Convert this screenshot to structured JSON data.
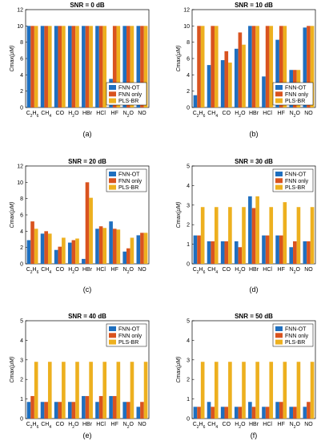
{
  "colors": {
    "FNN-OT": "#1f6fbf",
    "FNN only": "#d9531f",
    "PLS-BR": "#edb01f"
  },
  "chart_data": [
    {
      "type": "bar",
      "title": "SNR = 0 dB",
      "caption": "(a)",
      "ylabel": "Cmax(μM)",
      "ylim": [
        0,
        12
      ],
      "yticks": [
        0,
        2,
        4,
        6,
        8,
        10,
        12
      ],
      "legend": "bottom-right",
      "categories": [
        "C2H6",
        "CH4",
        "CO",
        "H2O",
        "HBr",
        "HCl",
        "HF",
        "N2O",
        "NO"
      ],
      "series": [
        {
          "name": "FNN-OT",
          "values": [
            10,
            10,
            10,
            10,
            10,
            10,
            3.5,
            10,
            10
          ]
        },
        {
          "name": "FNN only",
          "values": [
            10,
            10,
            10,
            10,
            10,
            10,
            10,
            10,
            10
          ]
        },
        {
          "name": "PLS-BR",
          "values": [
            10,
            10,
            10,
            10,
            10,
            10,
            10,
            10,
            10
          ]
        }
      ]
    },
    {
      "type": "bar",
      "title": "SNR = 10 dB",
      "caption": "(b)",
      "ylabel": "Cmax(μM)",
      "ylim": [
        0,
        12
      ],
      "yticks": [
        0,
        2,
        4,
        6,
        8,
        10,
        12
      ],
      "legend": "bottom-right",
      "categories": [
        "C2H6",
        "CH4",
        "CO",
        "H2O",
        "HBr",
        "HCl",
        "HF",
        "N2O",
        "NO"
      ],
      "series": [
        {
          "name": "FNN-OT",
          "values": [
            1.5,
            5.2,
            5.8,
            7.2,
            10,
            3.8,
            8.3,
            4.6,
            9.8
          ]
        },
        {
          "name": "FNN only",
          "values": [
            10,
            10,
            6.9,
            9.2,
            10,
            10,
            10,
            4.6,
            10
          ]
        },
        {
          "name": "PLS-BR",
          "values": [
            10,
            10,
            5.5,
            7.7,
            10,
            10,
            10,
            4.6,
            10
          ]
        }
      ]
    },
    {
      "type": "bar",
      "title": "SNR = 20 dB",
      "caption": "(c)",
      "ylabel": "Cmax(μM)",
      "ylim": [
        0,
        12
      ],
      "yticks": [
        0,
        2,
        4,
        6,
        8,
        10,
        12
      ],
      "legend": "top-right",
      "categories": [
        "C2H6",
        "CH4",
        "CO",
        "H2O",
        "HBr",
        "HCl",
        "HF",
        "N2O",
        "NO"
      ],
      "series": [
        {
          "name": "FNN-OT",
          "values": [
            2.9,
            3.7,
            1.7,
            2.6,
            0.6,
            4.3,
            5.2,
            1.5,
            3.5
          ]
        },
        {
          "name": "FNN only",
          "values": [
            5.2,
            4.0,
            2.1,
            2.9,
            10.0,
            4.6,
            4.3,
            1.9,
            3.8
          ]
        },
        {
          "name": "PLS-BR",
          "values": [
            4.3,
            3.7,
            3.2,
            3.1,
            8.1,
            4.4,
            4.2,
            3.2,
            3.8
          ]
        }
      ]
    },
    {
      "type": "bar",
      "title": "SNR = 30 dB",
      "caption": "(d)",
      "ylabel": "Cmax(μM)",
      "ylim": [
        0,
        5
      ],
      "yticks": [
        0,
        1,
        2,
        3,
        4,
        5
      ],
      "legend": "top-right",
      "categories": [
        "C2H6",
        "CH4",
        "CO",
        "H2O",
        "HBr",
        "HCl",
        "HF",
        "N2O",
        "NO"
      ],
      "series": [
        {
          "name": "FNN-OT",
          "values": [
            1.45,
            1.15,
            1.15,
            1.15,
            3.45,
            1.45,
            1.45,
            0.85,
            1.15
          ]
        },
        {
          "name": "FNN only",
          "values": [
            1.45,
            1.15,
            1.15,
            0.85,
            2.85,
            1.45,
            1.45,
            1.15,
            1.15
          ]
        },
        {
          "name": "PLS-BR",
          "values": [
            2.9,
            2.9,
            2.9,
            2.9,
            3.45,
            2.9,
            3.15,
            2.9,
            2.9
          ]
        }
      ]
    },
    {
      "type": "bar",
      "title": "SNR = 40 dB",
      "caption": "(e)",
      "ylabel": "Cmax(μM)",
      "ylim": [
        0,
        5
      ],
      "yticks": [
        0,
        1,
        2,
        3,
        4,
        5
      ],
      "legend": "top-right",
      "categories": [
        "C2H6",
        "CH4",
        "CO",
        "H2O",
        "HBr",
        "HCl",
        "HF",
        "N2O",
        "NO"
      ],
      "series": [
        {
          "name": "FNN-OT",
          "values": [
            0.85,
            0.85,
            0.85,
            0.85,
            1.15,
            0.85,
            1.15,
            0.85,
            0.6
          ]
        },
        {
          "name": "FNN only",
          "values": [
            1.15,
            0.85,
            0.85,
            0.85,
            1.15,
            1.15,
            1.15,
            0.85,
            0.85
          ]
        },
        {
          "name": "PLS-BR",
          "values": [
            2.9,
            2.9,
            2.9,
            2.9,
            2.9,
            2.9,
            2.9,
            2.9,
            2.9
          ]
        }
      ]
    },
    {
      "type": "bar",
      "title": "SNR = 50 dB",
      "caption": "(f)",
      "ylabel": "Cmax(μM)",
      "ylim": [
        0,
        5
      ],
      "yticks": [
        0,
        1,
        2,
        3,
        4,
        5
      ],
      "legend": "top-right",
      "categories": [
        "C2H6",
        "CH4",
        "CO",
        "H2O",
        "HBr",
        "HCl",
        "HF",
        "N2O",
        "NO"
      ],
      "series": [
        {
          "name": "FNN-OT",
          "values": [
            0.6,
            0.85,
            0.6,
            0.6,
            0.85,
            0.6,
            0.85,
            0.6,
            0.6
          ]
        },
        {
          "name": "FNN only",
          "values": [
            0.6,
            0.6,
            0.6,
            0.6,
            0.6,
            0.6,
            0.85,
            0.6,
            0.85
          ]
        },
        {
          "name": "PLS-BR",
          "values": [
            2.9,
            2.9,
            2.9,
            2.9,
            2.9,
            2.9,
            2.9,
            2.9,
            2.9
          ]
        }
      ]
    }
  ]
}
